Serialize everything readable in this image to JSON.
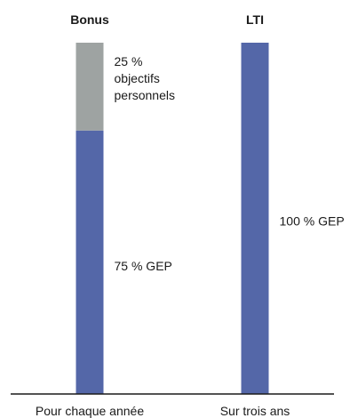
{
  "chart_data": {
    "type": "bar",
    "stacked": true,
    "title": "",
    "xlabel": "",
    "ylabel": "",
    "ylim": [
      0,
      100
    ],
    "categories": [
      {
        "title": "Bonus",
        "label": "Pour chaque année",
        "segments": [
          {
            "value": 75,
            "label_lines": [
              "75 % GEP"
            ],
            "color": "#5467a8"
          },
          {
            "value": 25,
            "label_lines": [
              "25 %",
              "objectifs",
              "personnels"
            ],
            "color": "#9ea3a2"
          }
        ]
      },
      {
        "title": "LTI",
        "label": "Sur trois ans",
        "segments": [
          {
            "value": 100,
            "label_lines": [
              "100 % GEP"
            ],
            "color": "#5467a8"
          }
        ]
      }
    ],
    "baseline_color": "#1a1a1a",
    "grid": false,
    "legend": "none"
  }
}
